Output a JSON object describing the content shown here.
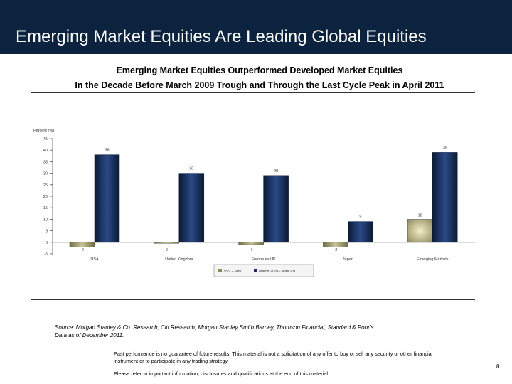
{
  "header": {
    "title": "Emerging Market Equities Are Leading Global Equities"
  },
  "subtitle_line1": "Emerging Market Equities Outperformed Developed Market Equities",
  "subtitle_line2": "In the Decade Before March 2009 Trough and Through the Last Cycle Peak in April 2011",
  "chart_data": {
    "type": "bar",
    "ylabel": "Percent (%)",
    "ylim": [
      -5,
      45
    ],
    "yticks": [
      -5,
      0,
      5,
      10,
      15,
      20,
      25,
      30,
      35,
      40,
      45
    ],
    "categories": [
      "USA",
      "United Kingdom",
      "Europe ex UK",
      "Japan",
      "Emerging Markets"
    ],
    "series": [
      {
        "name": "3/99 - 3/09",
        "values": [
          -2,
          0,
          -1,
          -2,
          10
        ],
        "labels": [
          "-2",
          "0",
          "-1",
          "-2",
          "10"
        ],
        "colors": [
          "#8a8a5a",
          "#8a8a5a",
          "#8a8a5a",
          "#8a8a5a",
          "#c9c290"
        ]
      },
      {
        "name": "March 2009 - April 2011",
        "values": [
          38,
          30,
          29,
          9,
          39
        ],
        "labels": [
          "38",
          "30",
          "29",
          "9",
          "39"
        ],
        "color": "#17305e"
      }
    ],
    "legend_position": "bottom"
  },
  "source": {
    "line1": "Source: Morgan Stanley & Co. Research, Citi Research, Morgan Stanley Smith Barney, Thomson Financial, Standard & Poor’s.",
    "line2": "Data as of December 2011."
  },
  "disclaimer": {
    "line1": "Past performance is no guarantee of future results. This material is not a solicitation of any offer to buy or sell any security or other financial",
    "line2": "instrument or to participate in any trading strategy.",
    "line3": "Please refer to important information, disclosures and qualifications at the end of this material."
  },
  "page_number": "8"
}
